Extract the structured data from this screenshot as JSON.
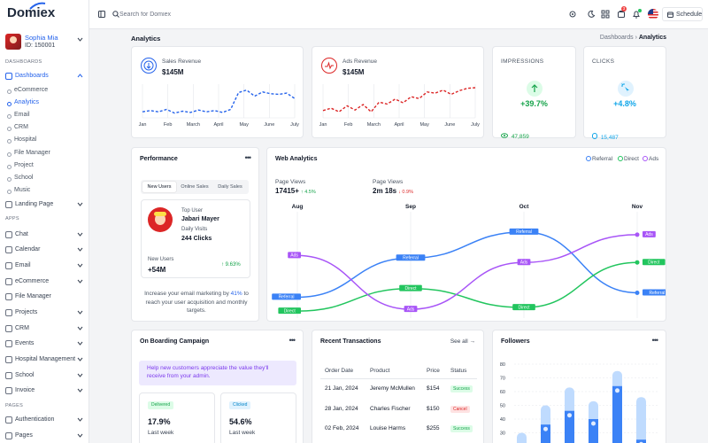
{
  "brand": {
    "name": "Domiex"
  },
  "user": {
    "name": "Sophia Mia",
    "id": "ID: 150001"
  },
  "sidebar": {
    "dashboards_label": "DASHBOARDS",
    "dashboards_item": "Dashboards",
    "dashboard_subs": [
      "eCommerce",
      "Analytics",
      "Email",
      "CRM",
      "Hospital",
      "File Manager",
      "Project",
      "School",
      "Music"
    ],
    "landing": "Landing Page",
    "apps_label": "APPS",
    "apps": [
      "Chat",
      "Calendar",
      "Email",
      "eCommerce",
      "File Manager",
      "Projects",
      "CRM",
      "Events",
      "Hospital Management",
      "School",
      "Invoice"
    ],
    "pages_label": "PAGES",
    "pages": [
      "Authentication",
      "Pages"
    ]
  },
  "topbar": {
    "search_placeholder": "Search for Domiex",
    "notif_count": "3",
    "schedule": "Schedule"
  },
  "page": {
    "title": "Analytics",
    "crumb_parent": "Dashboards",
    "crumb_current": "Analytics"
  },
  "sales": {
    "label": "Sales Revenue",
    "value": "$145M",
    "months": [
      "Jan",
      "Feb",
      "March",
      "April",
      "May",
      "June",
      "July"
    ],
    "points": [
      5.0,
      5.2,
      5.0,
      5.4,
      4.8,
      5.1,
      4.9,
      5.3,
      5.0,
      5.2,
      4.9,
      5.4,
      8.2,
      8.6,
      7.6,
      8.3,
      8.0,
      7.9,
      8.1,
      7.2
    ],
    "color": "#2563eb"
  },
  "ads": {
    "label": "Ads Revenue",
    "value": "$145M",
    "months": [
      "Jan",
      "Feb",
      "March",
      "April",
      "May",
      "June",
      "July"
    ],
    "points": [
      5.2,
      5.6,
      5.0,
      6.0,
      5.3,
      6.2,
      5.0,
      6.6,
      6.3,
      7.1,
      6.5,
      7.5,
      7.2,
      8.3,
      8.1,
      8.6,
      7.9,
      8.5,
      8.9,
      9.0
    ],
    "color": "#dc2626"
  },
  "impressions": {
    "label": "IMPRESSIONS",
    "pct": "+39.7%",
    "count": "47,859",
    "color": "#16a34a"
  },
  "clicks": {
    "label": "CLICKS",
    "pct": "+4.8%",
    "count": "15,487",
    "color": "#0ea5e9"
  },
  "performance": {
    "title": "Performance",
    "tabs": [
      "New Users",
      "Online Sales",
      "Daily Sales"
    ],
    "top_user_label": "Top User",
    "top_user": "Jabari Mayer",
    "daily_visits_label": "Daily Visits",
    "daily_visits": "244 Clicks",
    "new_users_label": "New Users",
    "new_users": "+54M",
    "new_users_change": "9.63%",
    "note_before": "Increase your email marketing by ",
    "note_pct": "41%",
    "note_after": " to reach your user acquisition and monthly targets."
  },
  "web_analytics": {
    "title": "Web Analytics",
    "legend": [
      "Referral",
      "Direct",
      "Ads"
    ],
    "page_views_label": "Page Views",
    "page_views_1": "17415+",
    "page_views_1_change": "4.5%",
    "page_views_2": "2m 18s",
    "page_views_2_change": "0.9%"
  },
  "chart_data": {
    "type": "line",
    "x": [
      "Aug",
      "Sep",
      "Oct",
      "Nov"
    ],
    "series": [
      {
        "name": "Referral",
        "values": [
          20,
          65,
          95,
          25
        ],
        "color": "#3b82f6"
      },
      {
        "name": "Direct",
        "values": [
          4,
          30,
          8,
          60
        ],
        "color": "#22c55e"
      },
      {
        "name": "Ads",
        "values": [
          68,
          6,
          60,
          92
        ],
        "color": "#a855f7"
      }
    ],
    "labels": [
      "Referral",
      "Direct",
      "Ads"
    ]
  },
  "onboarding": {
    "title": "On Boarding Campaign",
    "notice": "Help new customers appreciate the value they'll receive from your admin.",
    "delivered": {
      "badge": "Delivered",
      "value": "17.9%",
      "sub": "Last week"
    },
    "clicked": {
      "badge": "Clicked",
      "value": "54.6%",
      "sub": "Last week"
    }
  },
  "transactions": {
    "title": "Recent Transactions",
    "see_all": "See all",
    "headers": [
      "Order Date",
      "Product",
      "Price",
      "Status"
    ],
    "rows": [
      {
        "date": "21 Jan, 2024",
        "product": "Jeremy McMullen",
        "price": "$154",
        "status": "Success"
      },
      {
        "date": "28 Jan, 2024",
        "product": "Charles Fischer",
        "price": "$150",
        "status": "Cancel"
      },
      {
        "date": "02 Feb, 2024",
        "product": "Louise Harms",
        "price": "$255",
        "status": "Success"
      }
    ]
  },
  "followers": {
    "title": "Followers",
    "y_ticks": [
      "80",
      "70",
      "60",
      "50",
      "40",
      "30"
    ],
    "bars": [
      {
        "light": 30,
        "dark": 0
      },
      {
        "light": 50,
        "dark": 36
      },
      {
        "light": 63,
        "dark": 46
      },
      {
        "light": 53,
        "dark": 40
      },
      {
        "light": 75,
        "dark": 64
      },
      {
        "light": 56,
        "dark": 25
      }
    ]
  }
}
